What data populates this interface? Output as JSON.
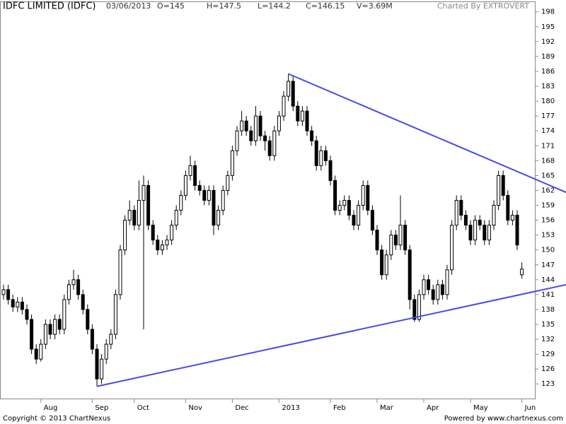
{
  "header": {
    "title": "IDFC LIMITED (IDFC)",
    "date": "03/06/2013",
    "open": "O=145",
    "high": "H=147.5",
    "low": "L=144.2",
    "close": "C=146.15",
    "volume": "V=3.69M",
    "credit": "Charted By EXTROVERT"
  },
  "footer": {
    "copyright": "Copyright © 2013 ChartNexus",
    "powered": "Powered by www.chartnexus.com"
  },
  "chart_data": {
    "type": "candlestick",
    "categories": [
      null,
      null,
      null,
      null,
      null,
      null,
      null,
      null,
      "Aug",
      null,
      null,
      null,
      null,
      null,
      null,
      null,
      null,
      null,
      null,
      "Sep",
      null,
      null,
      null,
      null,
      null,
      null,
      null,
      null,
      "Oct",
      null,
      null,
      null,
      null,
      null,
      null,
      null,
      null,
      null,
      null,
      "Nov",
      null,
      null,
      null,
      null,
      null,
      null,
      null,
      null,
      null,
      "Dec",
      null,
      null,
      null,
      null,
      null,
      null,
      null,
      null,
      null,
      "2013",
      null,
      null,
      null,
      null,
      null,
      null,
      null,
      null,
      null,
      null,
      "Feb",
      null,
      null,
      null,
      null,
      null,
      null,
      null,
      null,
      null,
      "Mar",
      null,
      null,
      null,
      null,
      null,
      null,
      null,
      null,
      null,
      "Apr",
      null,
      null,
      null,
      null,
      null,
      null,
      null,
      null,
      null,
      "May",
      null,
      null,
      null,
      null,
      null,
      null,
      null,
      null,
      null,
      null,
      "Jun"
    ],
    "open": [
      141,
      142,
      140,
      138.5,
      139.5,
      138,
      136,
      130,
      128,
      131,
      135,
      133,
      136,
      134,
      140,
      143,
      144,
      141,
      138,
      134,
      130,
      124,
      128,
      131,
      133,
      141,
      150,
      156,
      158,
      155,
      160,
      163,
      155,
      152,
      150,
      151,
      152,
      155,
      158,
      161,
      165,
      167,
      163,
      162,
      160,
      162,
      155,
      158,
      162,
      165,
      170,
      174,
      176,
      174,
      172,
      177,
      173,
      172,
      169,
      174,
      177,
      181,
      184,
      179,
      176,
      178,
      174,
      172,
      167,
      170,
      168,
      164,
      158,
      159,
      160,
      157,
      155,
      159,
      163,
      158,
      154,
      150,
      145,
      149,
      153,
      151,
      155,
      150,
      140,
      136,
      141,
      144,
      142,
      140,
      143,
      141,
      146,
      155,
      160,
      157,
      155,
      152,
      156,
      155,
      152,
      155,
      159,
      165,
      161,
      156,
      157,
      145
    ],
    "high": [
      143,
      143,
      141,
      140.5,
      140.5,
      139,
      137,
      131,
      132,
      136,
      136,
      137,
      137,
      141,
      144,
      146,
      145,
      142,
      139,
      135,
      131,
      129,
      132,
      134,
      142,
      151,
      157,
      160,
      159,
      164,
      165,
      164,
      156,
      153,
      152,
      153,
      156,
      159,
      162,
      166,
      169,
      168,
      164,
      163,
      163,
      163,
      159,
      163,
      166,
      171,
      175,
      178,
      177,
      175,
      179,
      178,
      174,
      173,
      175,
      178,
      182,
      185.5,
      185,
      180,
      179,
      179,
      175,
      173,
      171,
      171,
      169,
      165,
      160,
      161,
      161,
      158,
      160,
      164,
      164,
      159,
      155,
      151,
      150,
      154,
      154,
      161,
      156,
      151,
      141,
      142,
      145,
      145,
      143,
      144,
      144,
      147,
      156,
      161,
      161,
      158,
      156,
      157,
      157,
      156,
      156,
      160,
      166,
      166,
      162,
      158,
      158,
      147.5
    ],
    "low": [
      140,
      139,
      137.5,
      137.5,
      137,
      135,
      129,
      127,
      127.5,
      130,
      132,
      132,
      133,
      133,
      139,
      142,
      140,
      137,
      133,
      129,
      122.5,
      123,
      127,
      130,
      132,
      140,
      149,
      155,
      154,
      154,
      134,
      154,
      151,
      149,
      149,
      150,
      151,
      154,
      157,
      160,
      164,
      162,
      161,
      159,
      159,
      153,
      154,
      157,
      161,
      164,
      169,
      173,
      173,
      171,
      171,
      172,
      170,
      168,
      168,
      173,
      176,
      180,
      178,
      175,
      175,
      173,
      171,
      166,
      166,
      167,
      163,
      157,
      157,
      158,
      156,
      154,
      154,
      158,
      157,
      153,
      149,
      144,
      144,
      148,
      150,
      150,
      149,
      138,
      135.5,
      135.5,
      140,
      141,
      139,
      139,
      140,
      140,
      145,
      154,
      156,
      154,
      151,
      151,
      154,
      151,
      151,
      154,
      158,
      160,
      155,
      155,
      150,
      144.2
    ],
    "close": [
      142,
      140,
      138.5,
      139.5,
      138,
      136,
      130,
      128,
      131,
      135,
      133,
      136,
      134,
      140,
      143,
      144,
      141,
      138,
      134,
      130,
      124,
      128,
      131,
      133,
      141,
      150,
      156,
      158,
      155,
      160,
      163,
      155,
      152,
      150,
      151,
      152,
      155,
      158,
      161,
      165,
      167,
      163,
      162,
      160,
      162,
      155,
      158,
      162,
      165,
      170,
      174,
      176,
      174,
      172,
      177,
      173,
      172,
      169,
      174,
      177,
      181,
      184,
      179,
      176,
      178,
      174,
      172,
      167,
      170,
      168,
      164,
      158,
      159,
      160,
      157,
      155,
      159,
      163,
      158,
      154,
      150,
      145,
      149,
      153,
      151,
      155,
      150,
      140,
      136,
      141,
      144,
      142,
      140,
      143,
      141,
      146,
      155,
      160,
      157,
      155,
      152,
      156,
      155,
      152,
      155,
      159,
      165,
      161,
      156,
      157,
      151,
      146.15
    ],
    "up_color": "#ffffff",
    "down_color": "#000000",
    "edge_color": "#000000",
    "trendlines": [
      {
        "color": "#4a4ae6",
        "x": [
          61,
          120.5
        ],
        "y": [
          185.5,
          161.6
        ]
      },
      {
        "color": "#4a4ae6",
        "x": [
          20,
          120.5
        ],
        "y": [
          122.5,
          143
        ]
      }
    ],
    "ylim": [
      119.9,
      200.1
    ],
    "yticks": [
      123,
      126,
      129,
      132,
      135,
      138,
      141,
      144,
      147,
      150,
      153,
      156,
      159,
      162,
      165,
      168,
      171,
      174,
      177,
      180,
      183,
      186,
      189,
      192,
      195,
      198
    ],
    "grid": false
  }
}
